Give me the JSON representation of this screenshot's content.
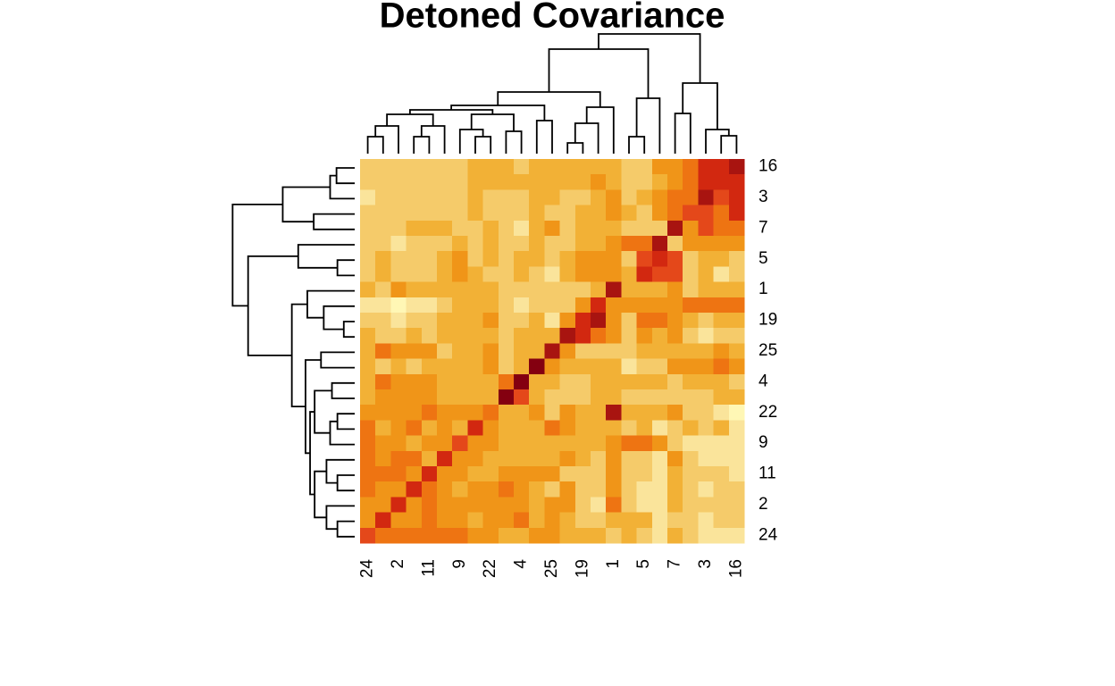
{
  "chart_data": {
    "type": "heatmap",
    "title": "Detoned Covariance",
    "x": [
      "24",
      null,
      "2",
      null,
      "11",
      null,
      "9",
      null,
      "22",
      null,
      "4",
      null,
      "25",
      null,
      "19",
      null,
      "1",
      null,
      "5",
      null,
      "7",
      null,
      "3",
      null,
      "16"
    ],
    "y": [
      "16",
      null,
      "3",
      null,
      "7",
      null,
      "5",
      null,
      "1",
      null,
      "19",
      null,
      "25",
      null,
      "4",
      null,
      "22",
      null,
      "9",
      null,
      "11",
      null,
      "2",
      null,
      "24"
    ],
    "colors": [
      "#FFF7B5",
      "#FAE49B",
      "#F5CB6A",
      "#F2B136",
      "#F09518",
      "#EE7412",
      "#E4481A",
      "#D22810",
      "#A81410",
      "#840010"
    ],
    "values": [
      [
        2,
        2,
        2,
        2,
        2,
        2,
        2,
        3,
        3,
        3,
        2,
        3,
        3,
        3,
        3,
        3,
        3,
        2,
        2,
        4,
        4,
        5,
        7,
        7,
        8
      ],
      [
        2,
        2,
        2,
        2,
        2,
        2,
        2,
        3,
        3,
        3,
        3,
        3,
        3,
        3,
        3,
        4,
        3,
        2,
        2,
        3,
        4,
        5,
        7,
        7,
        7
      ],
      [
        1,
        2,
        2,
        2,
        2,
        2,
        2,
        3,
        2,
        2,
        2,
        3,
        3,
        2,
        2,
        3,
        4,
        2,
        3,
        4,
        5,
        5,
        8,
        6,
        7
      ],
      [
        2,
        2,
        2,
        2,
        2,
        2,
        2,
        3,
        2,
        2,
        2,
        3,
        2,
        2,
        3,
        3,
        4,
        3,
        2,
        4,
        5,
        6,
        6,
        5,
        7
      ],
      [
        2,
        2,
        2,
        3,
        3,
        3,
        2,
        2,
        3,
        2,
        1,
        3,
        4,
        2,
        3,
        3,
        3,
        2,
        2,
        2,
        8,
        4,
        6,
        5,
        5
      ],
      [
        2,
        2,
        1,
        2,
        2,
        2,
        3,
        2,
        3,
        2,
        2,
        3,
        2,
        2,
        3,
        3,
        4,
        5,
        5,
        8,
        2,
        4,
        4,
        4,
        4
      ],
      [
        2,
        3,
        2,
        2,
        2,
        3,
        4,
        2,
        3,
        2,
        3,
        3,
        2,
        3,
        4,
        4,
        4,
        2,
        6,
        7,
        6,
        2,
        3,
        3,
        2
      ],
      [
        2,
        3,
        2,
        2,
        2,
        3,
        4,
        3,
        2,
        2,
        3,
        2,
        1,
        3,
        4,
        4,
        4,
        3,
        7,
        6,
        6,
        2,
        3,
        1,
        2
      ],
      [
        3,
        2,
        4,
        3,
        3,
        3,
        3,
        3,
        3,
        2,
        2,
        2,
        2,
        2,
        2,
        3,
        8,
        3,
        3,
        3,
        4,
        2,
        3,
        3,
        3
      ],
      [
        1,
        1,
        0,
        1,
        1,
        2,
        3,
        3,
        3,
        2,
        1,
        2,
        2,
        2,
        4,
        7,
        4,
        4,
        4,
        4,
        4,
        5,
        5,
        5,
        5
      ],
      [
        2,
        2,
        1,
        2,
        2,
        3,
        3,
        3,
        4,
        2,
        2,
        3,
        1,
        4,
        7,
        8,
        4,
        2,
        5,
        5,
        4,
        3,
        2,
        3,
        3
      ],
      [
        3,
        2,
        2,
        3,
        2,
        3,
        3,
        3,
        3,
        2,
        3,
        3,
        3,
        8,
        7,
        5,
        4,
        2,
        4,
        3,
        4,
        2,
        1,
        2,
        2
      ],
      [
        3,
        5,
        4,
        4,
        4,
        2,
        3,
        3,
        4,
        2,
        3,
        3,
        8,
        4,
        2,
        2,
        2,
        2,
        3,
        3,
        3,
        3,
        3,
        4,
        3
      ],
      [
        3,
        2,
        3,
        2,
        3,
        3,
        3,
        3,
        4,
        2,
        3,
        9,
        4,
        3,
        3,
        3,
        3,
        1,
        2,
        2,
        4,
        4,
        4,
        5,
        4
      ],
      [
        3,
        5,
        4,
        4,
        4,
        3,
        3,
        3,
        3,
        5,
        9,
        3,
        3,
        2,
        2,
        3,
        3,
        3,
        3,
        3,
        2,
        3,
        3,
        3,
        2
      ],
      [
        3,
        4,
        4,
        4,
        4,
        3,
        3,
        3,
        3,
        9,
        6,
        3,
        2,
        2,
        2,
        3,
        3,
        2,
        2,
        2,
        2,
        2,
        2,
        3,
        3
      ],
      [
        4,
        4,
        4,
        4,
        5,
        4,
        4,
        4,
        5,
        3,
        3,
        4,
        2,
        4,
        3,
        3,
        8,
        3,
        3,
        3,
        4,
        2,
        2,
        1,
        0
      ],
      [
        5,
        3,
        4,
        5,
        3,
        4,
        3,
        7,
        4,
        3,
        3,
        3,
        5,
        4,
        3,
        3,
        3,
        2,
        3,
        1,
        2,
        3,
        2,
        3,
        1
      ],
      [
        5,
        4,
        4,
        3,
        4,
        4,
        6,
        4,
        4,
        3,
        3,
        3,
        3,
        3,
        3,
        3,
        4,
        5,
        5,
        4,
        2,
        1,
        1,
        1,
        1
      ],
      [
        5,
        4,
        5,
        5,
        3,
        7,
        4,
        4,
        3,
        3,
        3,
        3,
        3,
        4,
        3,
        2,
        4,
        2,
        2,
        1,
        4,
        2,
        1,
        1,
        1
      ],
      [
        5,
        5,
        5,
        4,
        7,
        4,
        4,
        3,
        3,
        4,
        4,
        4,
        4,
        2,
        2,
        2,
        4,
        2,
        2,
        1,
        3,
        2,
        2,
        2,
        1
      ],
      [
        5,
        4,
        4,
        7,
        5,
        4,
        3,
        4,
        4,
        5,
        4,
        3,
        2,
        4,
        2,
        2,
        4,
        2,
        1,
        1,
        3,
        2,
        1,
        2,
        2
      ],
      [
        4,
        4,
        7,
        4,
        5,
        4,
        4,
        4,
        4,
        4,
        4,
        3,
        4,
        4,
        2,
        1,
        5,
        2,
        1,
        1,
        3,
        2,
        2,
        2,
        2
      ],
      [
        4,
        7,
        4,
        4,
        5,
        4,
        4,
        3,
        4,
        4,
        5,
        3,
        4,
        3,
        2,
        2,
        3,
        3,
        3,
        1,
        2,
        2,
        1,
        2,
        2
      ],
      [
        6,
        5,
        5,
        5,
        5,
        5,
        5,
        4,
        4,
        3,
        3,
        4,
        4,
        3,
        3,
        3,
        2,
        3,
        2,
        1,
        3,
        2,
        1,
        1,
        1
      ]
    ]
  }
}
